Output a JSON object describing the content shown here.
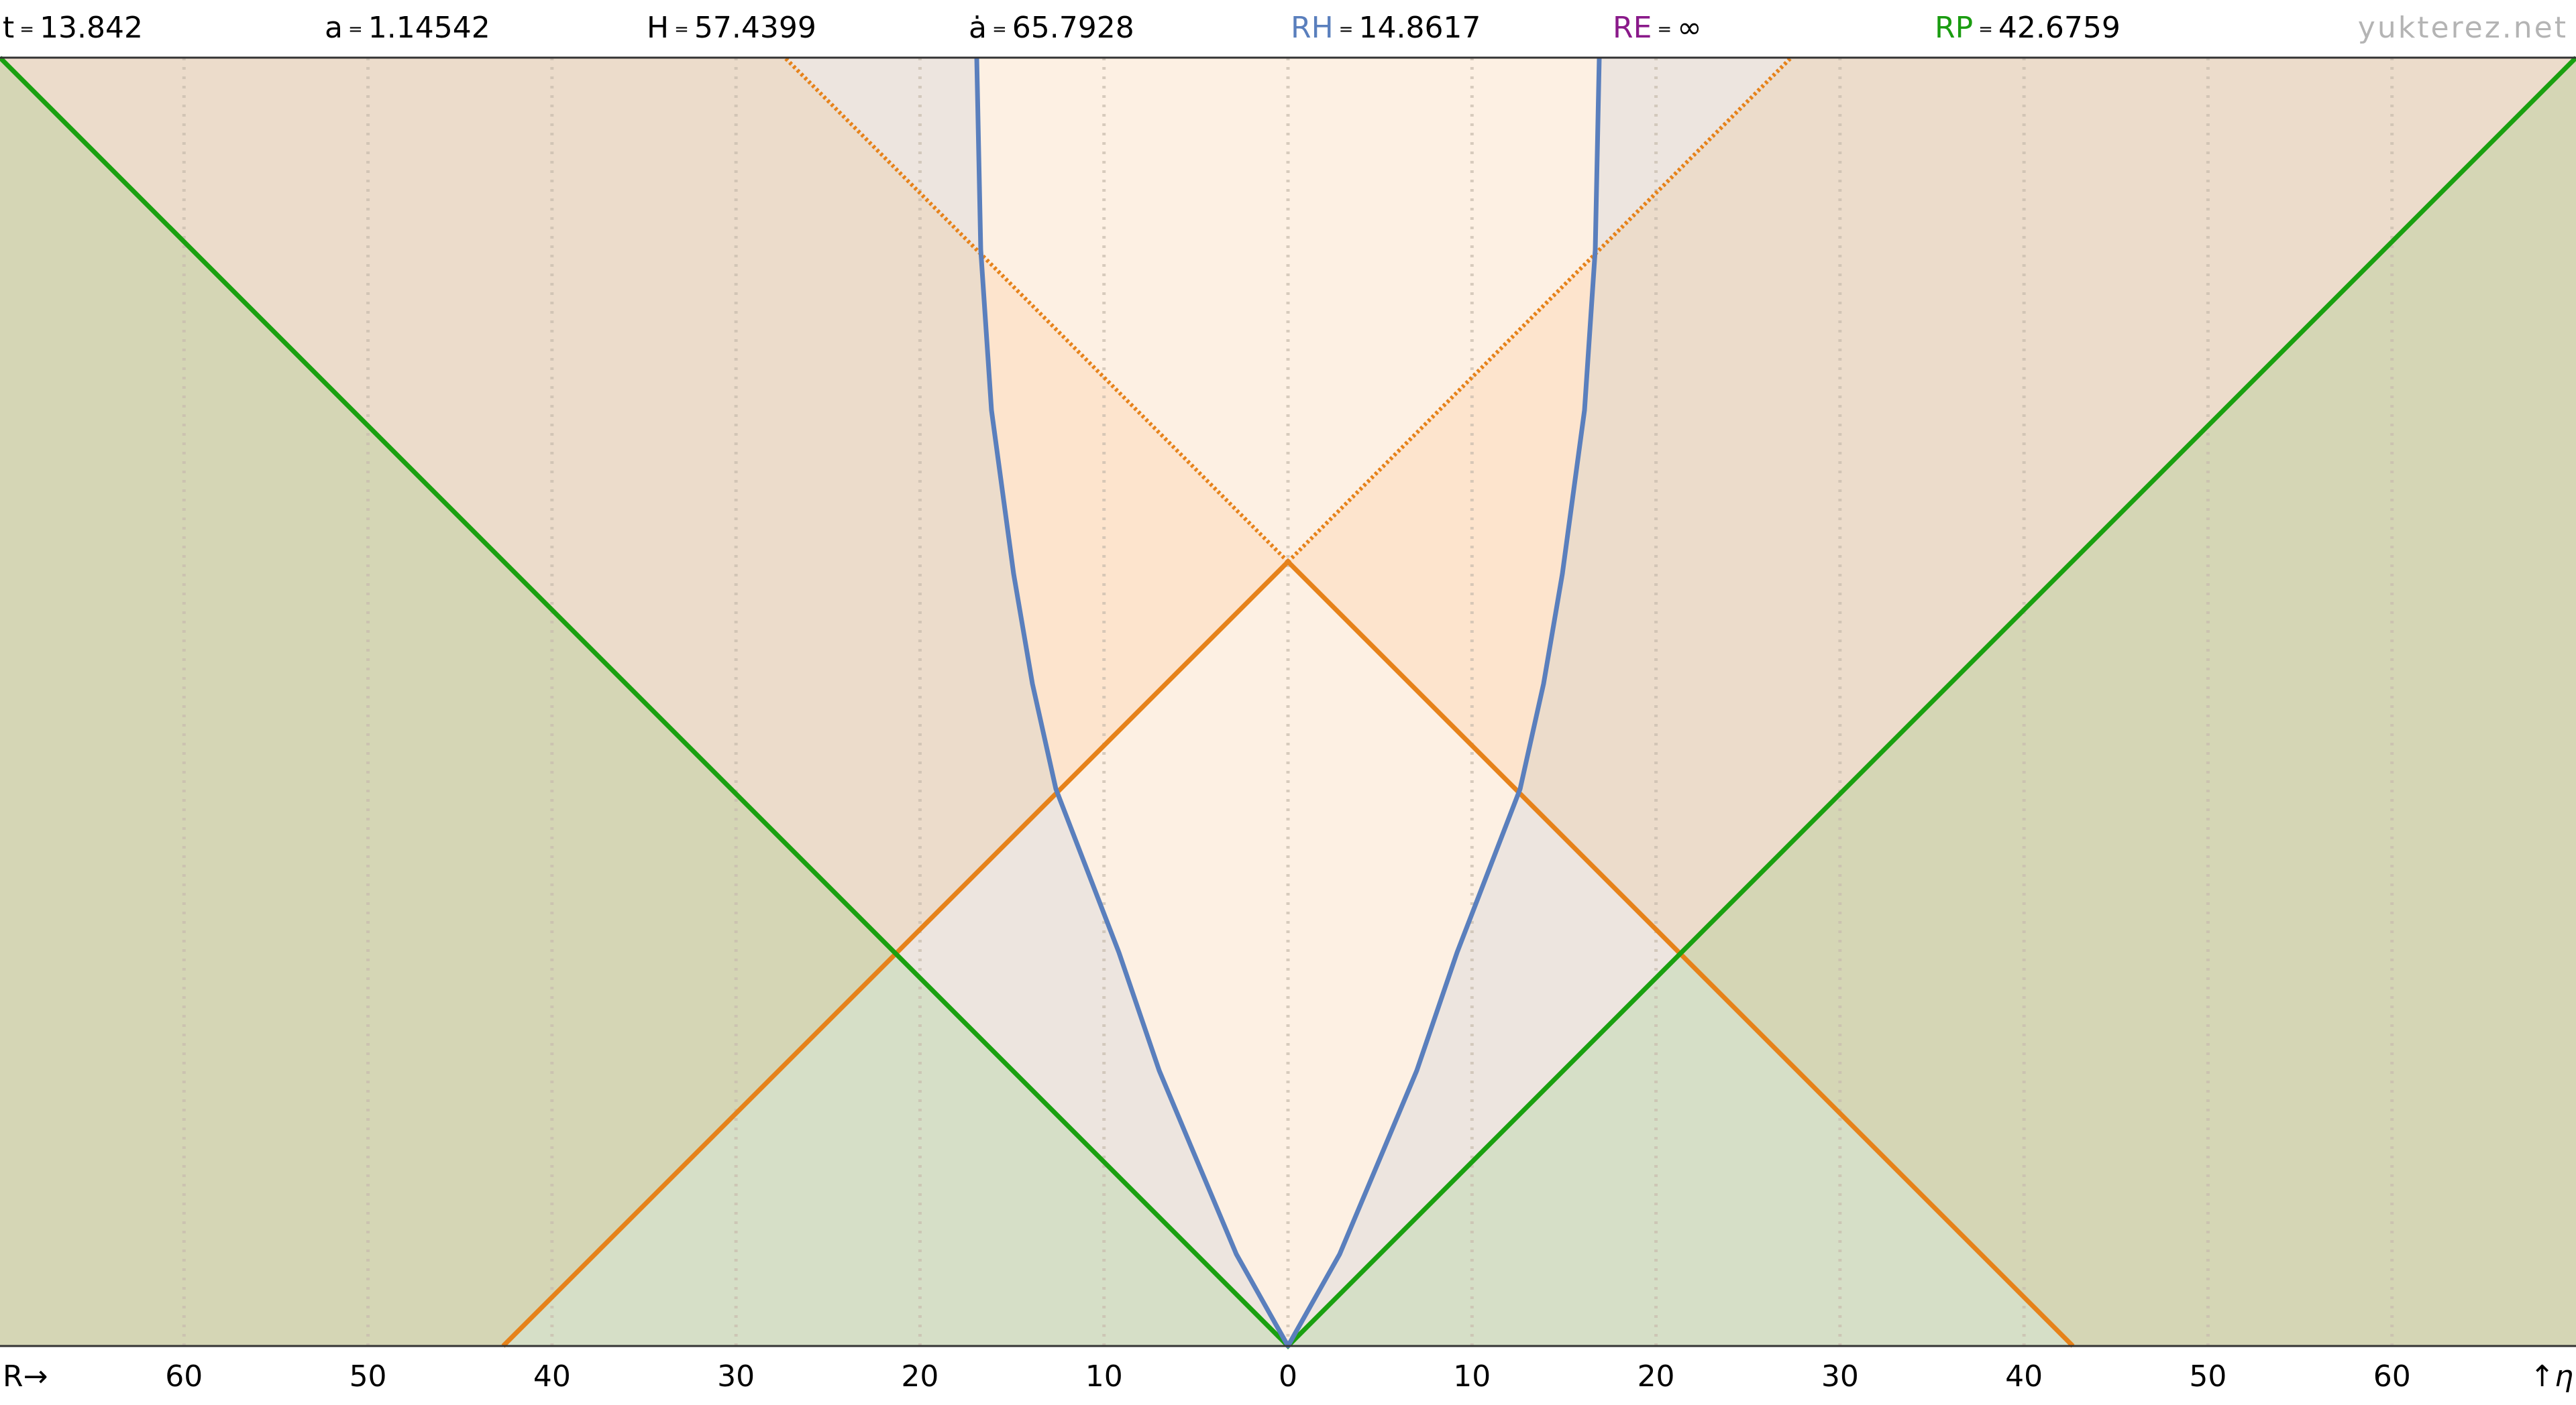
{
  "header": {
    "items": [
      {
        "label": "t",
        "value": 13.842,
        "color": "#000000"
      },
      {
        "label": "a",
        "value": 1.14542,
        "color": "#000000"
      },
      {
        "label": "H",
        "value": 57.4399,
        "color": "#000000"
      },
      {
        "label": "ȧ",
        "value": 65.7928,
        "color": "#000000"
      },
      {
        "label": "RH",
        "value": 14.8617,
        "color": "#5a7fbd"
      },
      {
        "label": "RE",
        "value": "∞",
        "color": "#8a1a8a"
      },
      {
        "label": "RP",
        "value": 42.6759,
        "color": "#1a9c10"
      }
    ],
    "eq": "=",
    "site": "yukterez.net"
  },
  "axis": {
    "label_left": "R→",
    "label_right": "↑η",
    "xlim": [
      -70,
      70
    ],
    "ticks": [
      {
        "value": -60,
        "label": "60"
      },
      {
        "value": -50,
        "label": "50"
      },
      {
        "value": -40,
        "label": "40"
      },
      {
        "value": -30,
        "label": "30"
      },
      {
        "value": -20,
        "label": "20"
      },
      {
        "value": -10,
        "label": "10"
      },
      0,
      10,
      20,
      30,
      40,
      50,
      60
    ]
  }
}
